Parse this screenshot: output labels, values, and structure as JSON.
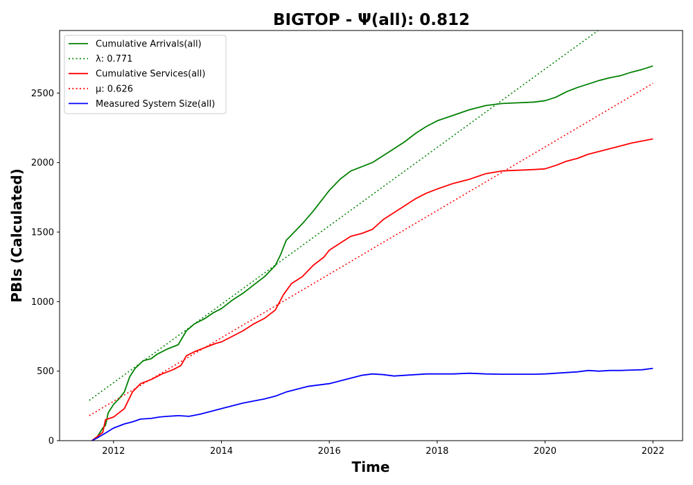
{
  "chart_data": {
    "type": "line",
    "title": "BIGTOP -  Ψ(all): 0.812",
    "xlabel": "Time",
    "ylabel": "PBIs (Calculated)",
    "xlim": [
      2011.0,
      2022.55
    ],
    "ylim": [
      0,
      2950
    ],
    "xticks": [
      2012,
      2014,
      2016,
      2018,
      2020,
      2022
    ],
    "yticks": [
      0,
      500,
      1000,
      1500,
      2000,
      2500
    ],
    "grid": false,
    "legend_position": "top-left",
    "series": [
      {
        "name": "Cumulative Arrivals(all)",
        "color": "#008000",
        "style": "solid",
        "x": [
          2011.6,
          2011.7,
          2011.8,
          2011.85,
          2011.9,
          2012.0,
          2012.1,
          2012.2,
          2012.3,
          2012.4,
          2012.55,
          2012.7,
          2012.8,
          2013.0,
          2013.2,
          2013.35,
          2013.5,
          2013.7,
          2013.85,
          2014.0,
          2014.2,
          2014.4,
          2014.6,
          2014.8,
          2015.0,
          2015.1,
          2015.2,
          2015.35,
          2015.5,
          2015.7,
          2015.9,
          2016.0,
          2016.2,
          2016.4,
          2016.6,
          2016.8,
          2017.0,
          2017.2,
          2017.4,
          2017.6,
          2017.8,
          2018.0,
          2018.3,
          2018.6,
          2018.9,
          2019.2,
          2019.5,
          2019.8,
          2020.0,
          2020.2,
          2020.4,
          2020.6,
          2020.8,
          2021.0,
          2021.2,
          2021.4,
          2021.6,
          2021.8,
          2022.0
        ],
        "y": [
          0,
          30,
          90,
          110,
          200,
          260,
          300,
          350,
          460,
          520,
          575,
          590,
          620,
          660,
          690,
          790,
          840,
          880,
          920,
          950,
          1010,
          1060,
          1120,
          1180,
          1260,
          1340,
          1440,
          1500,
          1560,
          1650,
          1750,
          1800,
          1880,
          1940,
          1970,
          2000,
          2050,
          2100,
          2150,
          2210,
          2260,
          2300,
          2340,
          2380,
          2410,
          2425,
          2430,
          2435,
          2445,
          2470,
          2510,
          2540,
          2565,
          2590,
          2610,
          2625,
          2650,
          2670,
          2695
        ]
      },
      {
        "name": "λ: 0.771",
        "color": "#008000",
        "style": "dotted",
        "x": [
          2011.55,
          2021.0
        ],
        "y": [
          290,
          2955
        ]
      },
      {
        "name": "Cumulative Services(all)",
        "color": "#ff0000",
        "style": "solid",
        "x": [
          2011.6,
          2011.7,
          2011.8,
          2011.85,
          2012.0,
          2012.2,
          2012.35,
          2012.5,
          2012.7,
          2012.9,
          2013.1,
          2013.25,
          2013.35,
          2013.5,
          2013.7,
          2013.9,
          2014.0,
          2014.2,
          2014.4,
          2014.6,
          2014.8,
          2015.0,
          2015.15,
          2015.3,
          2015.5,
          2015.7,
          2015.9,
          2016.0,
          2016.2,
          2016.4,
          2016.6,
          2016.8,
          2017.0,
          2017.2,
          2017.4,
          2017.6,
          2017.8,
          2018.0,
          2018.3,
          2018.6,
          2018.9,
          2019.2,
          2019.5,
          2019.8,
          2020.0,
          2020.2,
          2020.4,
          2020.6,
          2020.8,
          2021.0,
          2021.2,
          2021.4,
          2021.6,
          2021.8,
          2022.0
        ],
        "y": [
          0,
          30,
          60,
          150,
          170,
          230,
          350,
          410,
          440,
          480,
          510,
          540,
          610,
          640,
          670,
          700,
          710,
          750,
          790,
          840,
          880,
          940,
          1050,
          1130,
          1180,
          1260,
          1320,
          1370,
          1420,
          1470,
          1490,
          1520,
          1590,
          1640,
          1690,
          1740,
          1780,
          1810,
          1850,
          1880,
          1920,
          1940,
          1945,
          1950,
          1955,
          1980,
          2010,
          2030,
          2060,
          2080,
          2100,
          2120,
          2140,
          2155,
          2170
        ]
      },
      {
        "name": "μ: 0.626",
        "color": "#ff0000",
        "style": "dotted",
        "x": [
          2011.55,
          2022.0
        ],
        "y": [
          180,
          2570
        ]
      },
      {
        "name": "Measured System Size(all)",
        "color": "#0000ff",
        "style": "solid",
        "x": [
          2011.6,
          2011.7,
          2011.85,
          2012.0,
          2012.2,
          2012.35,
          2012.5,
          2012.7,
          2012.85,
          2013.0,
          2013.2,
          2013.4,
          2013.6,
          2013.8,
          2014.0,
          2014.2,
          2014.4,
          2014.6,
          2014.8,
          2015.0,
          2015.2,
          2015.4,
          2015.6,
          2015.8,
          2016.0,
          2016.2,
          2016.4,
          2016.6,
          2016.8,
          2017.0,
          2017.2,
          2017.4,
          2017.6,
          2017.8,
          2018.0,
          2018.3,
          2018.6,
          2018.9,
          2019.2,
          2019.5,
          2019.8,
          2020.0,
          2020.2,
          2020.4,
          2020.6,
          2020.8,
          2021.0,
          2021.2,
          2021.4,
          2021.6,
          2021.8,
          2022.0
        ],
        "y": [
          0,
          20,
          55,
          90,
          120,
          135,
          155,
          160,
          170,
          175,
          180,
          175,
          190,
          210,
          230,
          250,
          270,
          285,
          300,
          320,
          350,
          370,
          390,
          400,
          410,
          430,
          450,
          470,
          480,
          475,
          465,
          470,
          475,
          480,
          480,
          480,
          485,
          480,
          478,
          478,
          478,
          480,
          485,
          490,
          495,
          505,
          500,
          505,
          505,
          508,
          510,
          520
        ]
      }
    ]
  }
}
